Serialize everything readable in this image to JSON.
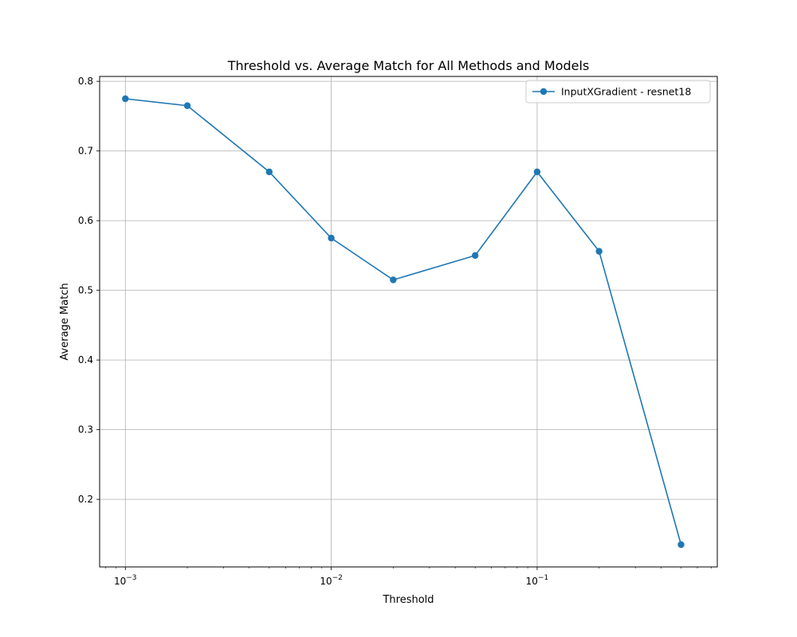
{
  "chart_data": {
    "type": "line",
    "title": "Threshold vs. Average Match for All Methods and Models",
    "xlabel": "Threshold",
    "ylabel": "Average Match",
    "xscale": "log",
    "xlim": [
      0.00075,
      0.75
    ],
    "ylim": [
      0.103,
      0.807
    ],
    "grid": true,
    "legend_position": "top-right",
    "xticks": [
      {
        "value": 0.001,
        "base": "10",
        "exp": "−3"
      },
      {
        "value": 0.01,
        "base": "10",
        "exp": "−2"
      },
      {
        "value": 0.1,
        "base": "10",
        "exp": "−1"
      }
    ],
    "yticks": [
      {
        "value": 0.2,
        "label": "0.2"
      },
      {
        "value": 0.3,
        "label": "0.3"
      },
      {
        "value": 0.4,
        "label": "0.4"
      },
      {
        "value": 0.5,
        "label": "0.5"
      },
      {
        "value": 0.6,
        "label": "0.6"
      },
      {
        "value": 0.7,
        "label": "0.7"
      },
      {
        "value": 0.8,
        "label": "0.8"
      }
    ],
    "series": [
      {
        "name": "InputXGradient - resnet18",
        "color": "#1f77b4",
        "marker": "circle",
        "x": [
          0.001,
          0.002,
          0.005,
          0.01,
          0.02,
          0.05,
          0.1,
          0.2,
          0.5
        ],
        "y": [
          0.775,
          0.765,
          0.67,
          0.575,
          0.515,
          0.55,
          0.67,
          0.556,
          0.135
        ]
      }
    ]
  }
}
